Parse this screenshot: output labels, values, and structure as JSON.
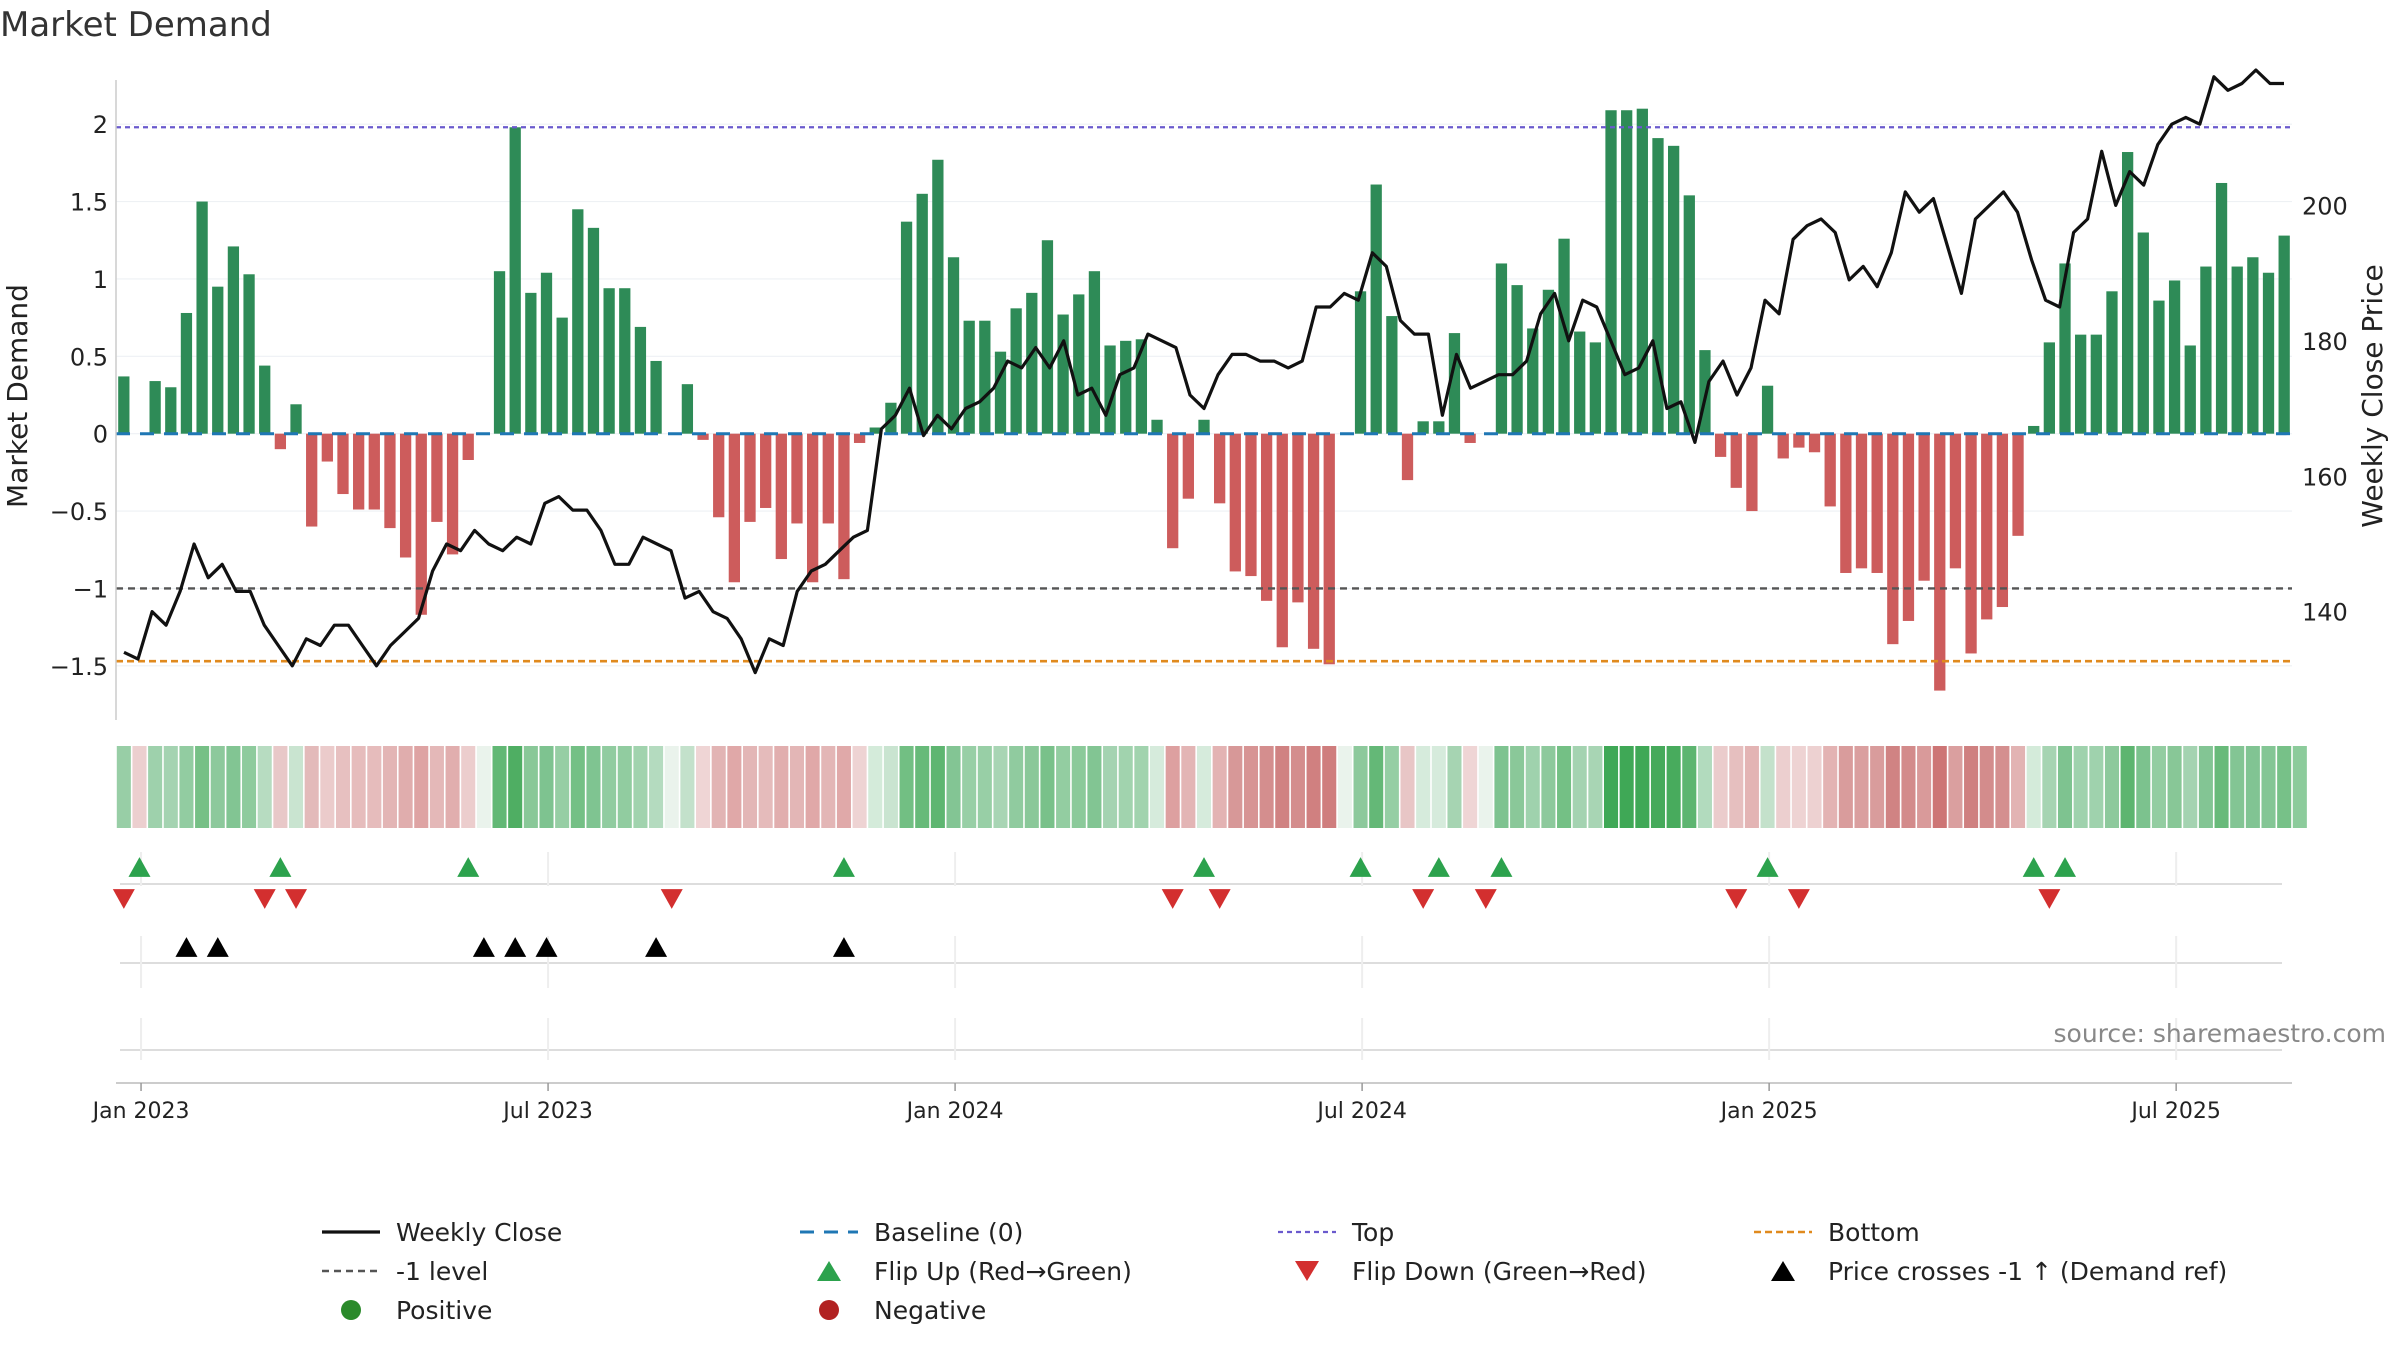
{
  "chart_data": {
    "type": "bar",
    "title": "Market Demand",
    "xlabel": "",
    "ylabel": "Market Demand",
    "y2label": "Weekly Close Price",
    "ylim": [
      -1.85,
      2.35
    ],
    "y2lim": [
      124,
      220
    ],
    "yticks": [
      2,
      1.5,
      1,
      0.5,
      0,
      -0.5,
      -1,
      -1.5
    ],
    "yticklabels": [
      "2",
      "1.5",
      "1",
      "0.5",
      "0",
      "−0.5",
      "−1",
      "−1.5"
    ],
    "y2ticks": [
      200,
      180,
      160,
      140
    ],
    "y2ticklabels": [
      "200",
      "180",
      "160",
      "140"
    ],
    "x_date_labels": [
      {
        "week": 0,
        "label": "Jan 2023"
      },
      {
        "week": 26,
        "label": "Jul 2023"
      },
      {
        "week": 52,
        "label": "Jan 2024"
      },
      {
        "week": 78,
        "label": "Jul 2024"
      },
      {
        "week": 104,
        "label": "Jan 2025"
      },
      {
        "week": 130,
        "label": "Jul 2025"
      }
    ],
    "week_start_offset": -1.6,
    "reference_lines": {
      "top": 1.98,
      "minus_one": -1.0,
      "bottom": -1.47,
      "baseline": 0
    },
    "demand": [
      0.37,
      0,
      0.34,
      0.3,
      0.78,
      1.5,
      0.95,
      1.21,
      1.03,
      0.44,
      -0.1,
      0.19,
      -0.6,
      -0.18,
      -0.39,
      -0.49,
      -0.49,
      -0.61,
      -0.8,
      -1.17,
      -0.57,
      -0.78,
      -0.17,
      0,
      1.05,
      1.98,
      0.91,
      1.04,
      0.75,
      1.45,
      1.33,
      0.94,
      0.94,
      0.69,
      0.47,
      0,
      0.32,
      -0.04,
      -0.54,
      -0.96,
      -0.57,
      -0.48,
      -0.81,
      -0.58,
      -0.96,
      -0.58,
      -0.94,
      -0.06,
      0.04,
      0.2,
      1.37,
      1.55,
      1.77,
      1.14,
      0.73,
      0.73,
      0.53,
      0.81,
      0.91,
      1.25,
      0.77,
      0.9,
      1.05,
      0.57,
      0.6,
      0.61,
      0.09,
      -0.74,
      -0.42,
      0.09,
      -0.45,
      -0.89,
      -0.92,
      -1.08,
      -1.38,
      -1.09,
      -1.39,
      -1.49,
      0,
      0.92,
      1.61,
      0.76,
      -0.3,
      0.08,
      0.08,
      0.65,
      -0.06,
      0,
      1.1,
      0.96,
      0.68,
      0.93,
      1.26,
      0.66,
      0.59,
      2.09,
      2.09,
      2.1,
      1.91,
      1.86,
      1.54,
      0.54,
      -0.15,
      -0.35,
      -0.5,
      0.31,
      -0.16,
      -0.09,
      -0.12,
      -0.47,
      -0.9,
      -0.87,
      -0.9,
      -1.36,
      -1.21,
      -0.95,
      -1.66,
      -0.87,
      -1.42,
      -1.2,
      -1.12,
      -0.66,
      0.05,
      0.59,
      1.1,
      0.64,
      0.64,
      0.92,
      1.82,
      1.3,
      0.86,
      0.99,
      0.57,
      1.08,
      1.62,
      1.08,
      1.14,
      1.04,
      1.28
    ],
    "weekly_close": [
      134,
      133,
      140,
      138,
      143,
      150,
      145,
      147,
      143,
      143,
      138,
      135,
      132,
      136,
      135,
      138,
      138,
      135,
      132,
      135,
      137,
      139,
      146,
      150,
      149,
      152,
      150,
      149,
      151,
      150,
      156,
      157,
      155,
      155,
      152,
      147,
      147,
      151,
      150,
      149,
      142,
      143,
      140,
      139,
      136,
      131,
      136,
      135,
      143,
      146,
      147,
      149,
      151,
      152,
      167,
      169,
      173,
      166,
      169,
      167,
      170,
      171,
      173,
      177,
      176,
      179,
      176,
      180,
      172,
      173,
      169,
      175,
      176,
      181,
      180,
      179,
      172,
      170,
      175,
      178,
      178,
      177,
      177,
      176,
      177,
      185,
      185,
      187,
      186,
      193,
      191,
      183,
      181,
      181,
      169,
      178,
      173,
      174,
      175,
      175,
      177,
      184,
      187,
      180,
      186,
      185,
      180,
      175,
      176,
      180,
      170,
      171,
      165,
      174,
      177,
      172,
      176,
      186,
      184,
      195,
      197,
      198,
      196,
      189,
      191,
      188,
      193,
      202,
      199,
      201,
      194,
      187,
      198,
      200,
      202,
      199,
      192,
      186,
      185,
      196,
      198,
      208,
      200,
      205,
      203,
      209,
      212,
      213,
      212,
      219,
      217,
      218,
      220,
      218,
      218
    ],
    "heat_strip_colors": [
      "#98cea6",
      "#eccfcf",
      "#9ed1ac",
      "#a4d3b1",
      "#92cca1",
      "#76c086",
      "#8dc99c",
      "#82c593",
      "#8ecb9d",
      "#b7dcc1",
      "#e8c8c8",
      "#c9e4d0",
      "#e3baba",
      "#ebcbcb",
      "#e7c0c0",
      "#e6bcbc",
      "#e6bcbc",
      "#e3b5b5",
      "#e0adad",
      "#dea3a3",
      "#e4b8b8",
      "#e1aeae",
      "#eccdcd",
      "#eaf3ec",
      "#62b875",
      "#4fae63",
      "#89c898",
      "#7ec390",
      "#96cea4",
      "#74c085",
      "#7fc491",
      "#91cca0",
      "#91cca0",
      "#a1d3ae",
      "#b4dbbf",
      "#eaf3ec",
      "#c3e1cb",
      "#efd5d5",
      "#e2b4b4",
      "#e0a8a8",
      "#e3b6b6",
      "#e5bbbb",
      "#e1aeae",
      "#e3b6b6",
      "#e0a8a8",
      "#e3b6b6",
      "#e0a9a9",
      "#eed3d3",
      "#d4ebda",
      "#c9e4d0",
      "#72bf83",
      "#67ba79",
      "#5eb671",
      "#83c594",
      "#98cfa6",
      "#98cfa6",
      "#a8d5b4",
      "#90cb9f",
      "#8ac899",
      "#79c18a",
      "#93cda1",
      "#8bca9a",
      "#82c593",
      "#a4d3b1",
      "#a1d3ae",
      "#a1d3ae",
      "#d6ebdc",
      "#dda0a0",
      "#e3b5b5",
      "#d6ebdc",
      "#e3b3b3",
      "#d79898",
      "#d79494",
      "#d48e8e",
      "#d08282",
      "#d48d8d",
      "#d08080",
      "#cf7d7d",
      "#eaf3ec",
      "#8dc99c",
      "#64b877",
      "#95cea4",
      "#e8c6c6",
      "#d6ebdc",
      "#d6ebdc",
      "#a6d4b2",
      "#efd5d5",
      "#eaf3ec",
      "#7ec390",
      "#8ac899",
      "#9fd2ad",
      "#8dc99c",
      "#74c085",
      "#a4d3b1",
      "#a8d5b4",
      "#3fa856",
      "#3fa856",
      "#3fa856",
      "#46aa5b",
      "#48ab5d",
      "#5db570",
      "#b2dbbe",
      "#ebcccc",
      "#e6bfbf",
      "#e3b4b4",
      "#c4e1cb",
      "#eccfcf",
      "#eed3d3",
      "#edd1d1",
      "#e3b3b3",
      "#d99c9c",
      "#da9f9f",
      "#d99c9c",
      "#d08383",
      "#d38b8b",
      "#d99a9a",
      "#cd7575",
      "#da9f9f",
      "#cf8080",
      "#d38c8c",
      "#d48f8f",
      "#e2b3b3",
      "#d4ebda",
      "#a6d4b2",
      "#7ec390",
      "#9fd2ad",
      "#9fd2ad",
      "#8dc99c",
      "#5db570",
      "#7cc28e",
      "#93cda1",
      "#88c797",
      "#a4d3b1",
      "#83c594",
      "#68ba7a",
      "#83c594",
      "#81c493",
      "#84c695",
      "#77c188",
      "#8ccb9b"
    ],
    "flip_up_weeks": [
      1,
      10,
      22,
      46,
      69,
      79,
      84,
      88,
      105,
      122,
      124
    ],
    "flip_down_weeks": [
      0,
      9,
      11,
      35,
      67,
      70,
      83,
      87,
      103,
      107,
      123
    ],
    "price_cross_weeks": [
      4,
      6,
      23,
      25,
      27,
      34,
      46
    ],
    "legend": [
      {
        "key": "weekly-close",
        "label": "Weekly Close"
      },
      {
        "key": "baseline",
        "label": "Baseline (0)"
      },
      {
        "key": "top",
        "label": "Top"
      },
      {
        "key": "bottom",
        "label": "Bottom"
      },
      {
        "key": "minus-one",
        "label": "-1 level"
      },
      {
        "key": "flip-up",
        "label": "Flip Up (Red→Green)"
      },
      {
        "key": "flip-down",
        "label": "Flip Down (Green→Red)"
      },
      {
        "key": "price-cross",
        "label": "Price crosses -1 ↑ (Demand ref)"
      },
      {
        "key": "positive",
        "label": "Positive"
      },
      {
        "key": "negative",
        "label": "Negative"
      }
    ],
    "legend_placement": "bottom",
    "source_text": "source: sharemaestro.com",
    "colors": {
      "positive_bar": "#2e8b57",
      "negative_bar": "#cd5c5c",
      "price_line": "#111111",
      "baseline": "#1f77b4",
      "top_line": "#6a5acd",
      "minus_one_line": "#555555",
      "bottom_line": "#e08a1e",
      "flip_up": "#2ca24d",
      "flip_down": "#d32f2f",
      "price_cross": "#000000",
      "positive_dot": "#2a8a2a",
      "negative_dot": "#b22222",
      "axis_text": "#222222",
      "grid": "#dddddd",
      "source_text": "#888888"
    }
  }
}
